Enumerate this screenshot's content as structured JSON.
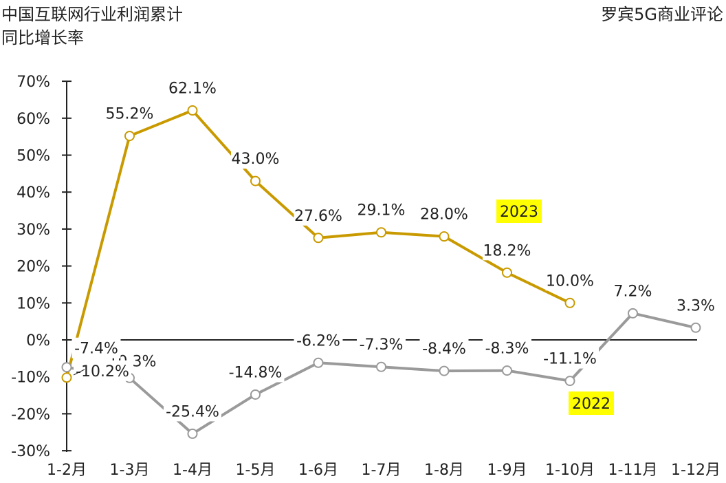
{
  "chart_data": {
    "type": "line",
    "title_line1": "中国互联网行业利润累计",
    "title_line2": "同比增长率",
    "source": "罗宾5G商业评论",
    "categories": [
      "1-2月",
      "1-3月",
      "1-4月",
      "1-5月",
      "1-6月",
      "1-7月",
      "1-8月",
      "1-9月",
      "1-10月",
      "1-11月",
      "1-12月"
    ],
    "yticks": [
      "70%",
      "60%",
      "50%",
      "40%",
      "30%",
      "20%",
      "10%",
      "0%",
      "-10%",
      "-20%",
      "-30%"
    ],
    "ytick_values": [
      70,
      60,
      50,
      40,
      30,
      20,
      10,
      0,
      -10,
      -20,
      -30
    ],
    "ylim": [
      -30,
      70
    ],
    "series": [
      {
        "name": "2023",
        "color": "#c99a00",
        "values": [
          -10.2,
          55.2,
          62.1,
          43.0,
          27.6,
          29.1,
          28.0,
          18.2,
          10.0,
          null,
          null
        ],
        "labels": [
          "-10.2%",
          "55.2%",
          "62.1%",
          "43.0%",
          "27.6%",
          "29.1%",
          "28.0%",
          "18.2%",
          "10.0%",
          null,
          null
        ]
      },
      {
        "name": "2022",
        "color": "#9a9a9a",
        "values": [
          -7.4,
          -10.3,
          -25.4,
          -14.8,
          -6.2,
          -7.3,
          -8.4,
          -8.3,
          -11.1,
          7.2,
          3.3
        ],
        "labels": [
          "-7.4%",
          "-10.3%",
          "-25.4%",
          "-14.8%",
          "-6.2%",
          "-7.3%",
          "-8.4%",
          "-8.3%",
          "-11.1%",
          "7.2%",
          "3.3%"
        ]
      }
    ],
    "legend_highlight_color": "#ffff00"
  }
}
